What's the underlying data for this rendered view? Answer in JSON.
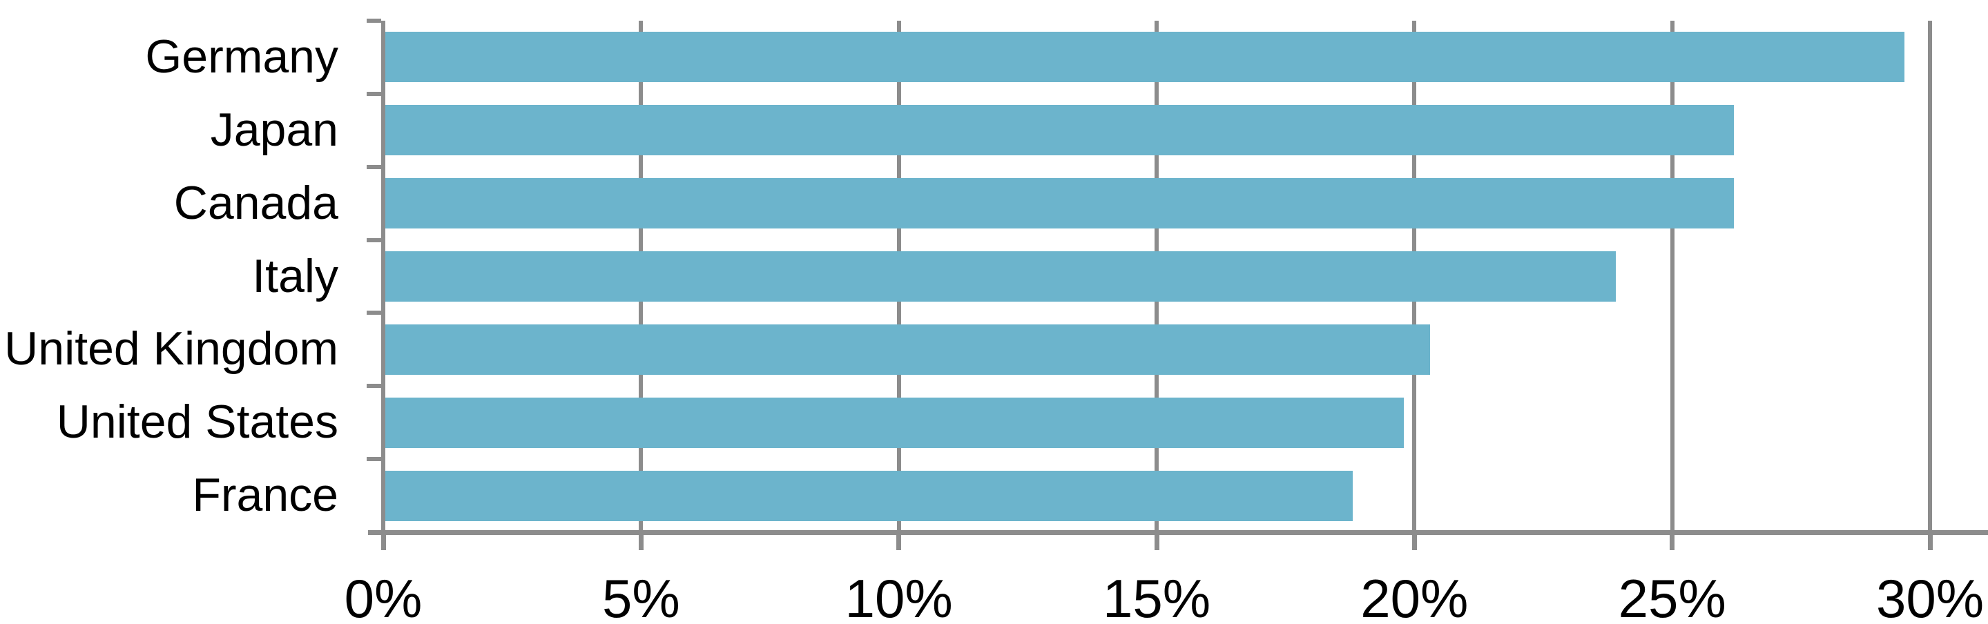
{
  "chart_data": {
    "type": "bar",
    "orientation": "horizontal",
    "title": "",
    "xlabel": "",
    "ylabel": "",
    "categories": [
      "Germany",
      "Japan",
      "Canada",
      "Italy",
      "United Kingdom",
      "United States",
      "France"
    ],
    "values": [
      29.5,
      26.2,
      26.2,
      23.9,
      20.3,
      19.8,
      18.8
    ],
    "value_unit": "%",
    "xlim": [
      0,
      30
    ],
    "xticks": [
      0,
      5,
      10,
      15,
      20,
      25,
      30
    ],
    "xtick_labels": [
      "0%",
      "5%",
      "10%",
      "15%",
      "20%",
      "25%",
      "30%"
    ],
    "grid": "vertical gridlines at x ticks, behind bars",
    "legend": "none",
    "colors": {
      "bar": "#6CB4CC",
      "axis": "#8C8C8C",
      "gridline": "#8C8C8C",
      "text": "#000000",
      "background": "#FFFFFF"
    }
  }
}
